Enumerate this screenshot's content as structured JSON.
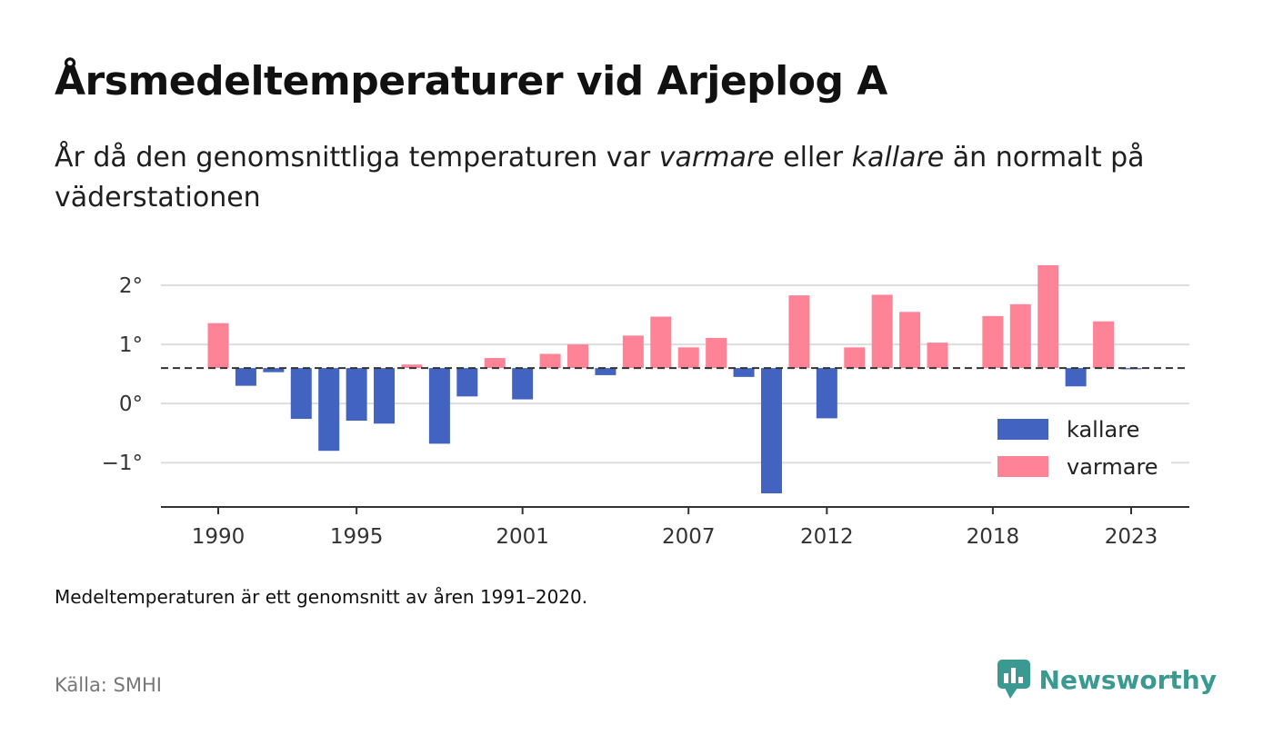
{
  "header": {
    "title": "Årsmedeltemperaturer vid Arjeplog A",
    "subtitle_part1": "År då den genomsnittliga temperaturen var ",
    "subtitle_em1": "varmare",
    "subtitle_part2": " eller ",
    "subtitle_em2": "kallare",
    "subtitle_part3": " än normalt på väderstationen"
  },
  "footer": {
    "note": "Medeltemperaturen är ett genomsnitt av åren 1991–2020.",
    "source": "Källa: SMHI",
    "brand": "Newsworthy"
  },
  "colors": {
    "kallare": "#4263bf",
    "varmare": "#ff8396",
    "reference_line": "#333333",
    "grid": "#dddddd",
    "axis": "#333333",
    "brand": "#3a9a91"
  },
  "chart_data": {
    "type": "bar",
    "baseline": 0.6,
    "ylim": [
      -1.75,
      2.4
    ],
    "yticks": [
      2,
      1,
      0,
      -1
    ],
    "ytick_labels": [
      "2°",
      "1°",
      "0°",
      "−1°"
    ],
    "xlim": [
      1988,
      2025
    ],
    "xticks": [
      1990,
      1995,
      2001,
      2007,
      2012,
      2018,
      2023
    ],
    "xtick_labels": [
      "1990",
      "1995",
      "2001",
      "2007",
      "2012",
      "2018",
      "2023"
    ],
    "legend_position": "bottom-right",
    "legend": [
      "kallare",
      "varmare"
    ],
    "series": [
      {
        "name": "kallare",
        "points": [
          {
            "year": 1991,
            "value": 0.3
          },
          {
            "year": 1992,
            "value": 0.53
          },
          {
            "year": 1993,
            "value": -0.26
          },
          {
            "year": 1994,
            "value": -0.8
          },
          {
            "year": 1995,
            "value": -0.29
          },
          {
            "year": 1996,
            "value": -0.34
          },
          {
            "year": 1998,
            "value": -0.68
          },
          {
            "year": 1999,
            "value": 0.12
          },
          {
            "year": 2001,
            "value": 0.07
          },
          {
            "year": 2004,
            "value": 0.48
          },
          {
            "year": 2009,
            "value": 0.45
          },
          {
            "year": 2010,
            "value": -1.52
          },
          {
            "year": 2012,
            "value": -0.25
          },
          {
            "year": 2021,
            "value": 0.29
          },
          {
            "year": 2023,
            "value": 0.58
          }
        ]
      },
      {
        "name": "varmare",
        "points": [
          {
            "year": 1990,
            "value": 1.36
          },
          {
            "year": 1997,
            "value": 0.66
          },
          {
            "year": 2000,
            "value": 0.77
          },
          {
            "year": 2002,
            "value": 0.84
          },
          {
            "year": 2003,
            "value": 1.0
          },
          {
            "year": 2005,
            "value": 1.15
          },
          {
            "year": 2006,
            "value": 1.47
          },
          {
            "year": 2007,
            "value": 0.95
          },
          {
            "year": 2008,
            "value": 1.11
          },
          {
            "year": 2011,
            "value": 1.83
          },
          {
            "year": 2013,
            "value": 0.95
          },
          {
            "year": 2014,
            "value": 1.84
          },
          {
            "year": 2015,
            "value": 1.55
          },
          {
            "year": 2016,
            "value": 1.03
          },
          {
            "year": 2018,
            "value": 1.48
          },
          {
            "year": 2019,
            "value": 1.68
          },
          {
            "year": 2020,
            "value": 2.34
          },
          {
            "year": 2022,
            "value": 1.39
          }
        ]
      }
    ]
  }
}
